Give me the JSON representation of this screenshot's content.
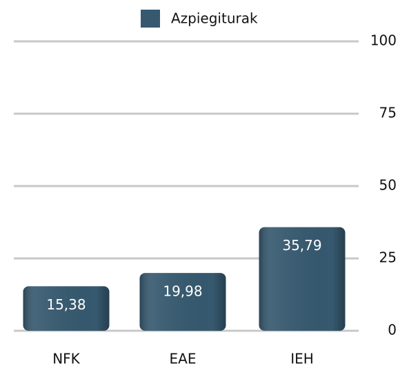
{
  "chart_data": {
    "type": "bar",
    "categories": [
      "NFK",
      "EAE",
      "IEH"
    ],
    "series": [
      {
        "name": "Azpiegiturak",
        "color": "#36596f",
        "values": [
          15.38,
          19.98,
          35.79
        ],
        "value_labels": [
          "15,38",
          "19,98",
          "35,79"
        ]
      }
    ],
    "ylim": [
      0,
      100
    ],
    "yticks": [
      0,
      25,
      50,
      75,
      100
    ],
    "grid": true,
    "y_axis_side": "right",
    "legend": "top"
  }
}
